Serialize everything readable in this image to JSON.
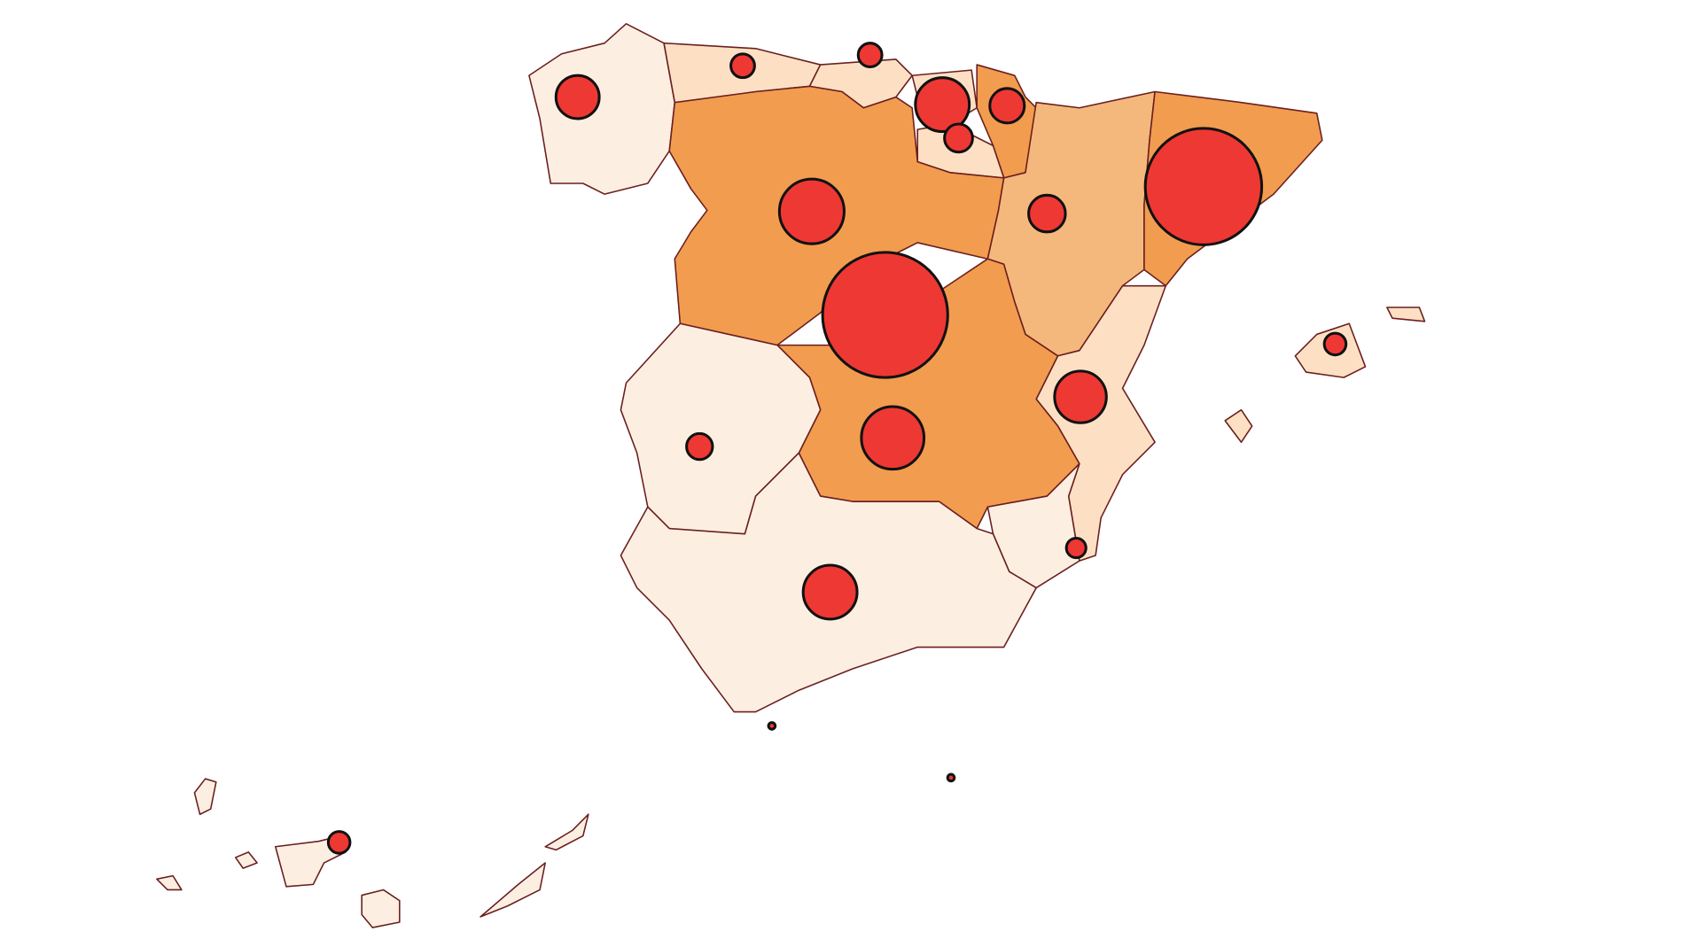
{
  "map": {
    "bubbles": [
      6.95,
      6.02,
      1.86,
      1.74,
      1.29,
      1.29,
      1.19,
      0.83,
      0.6,
      0.53,
      0.35,
      0.25,
      0.25,
      0.3,
      0.17,
      0.21,
      0.21,
      0.02,
      0.02
    ]
  }
}
